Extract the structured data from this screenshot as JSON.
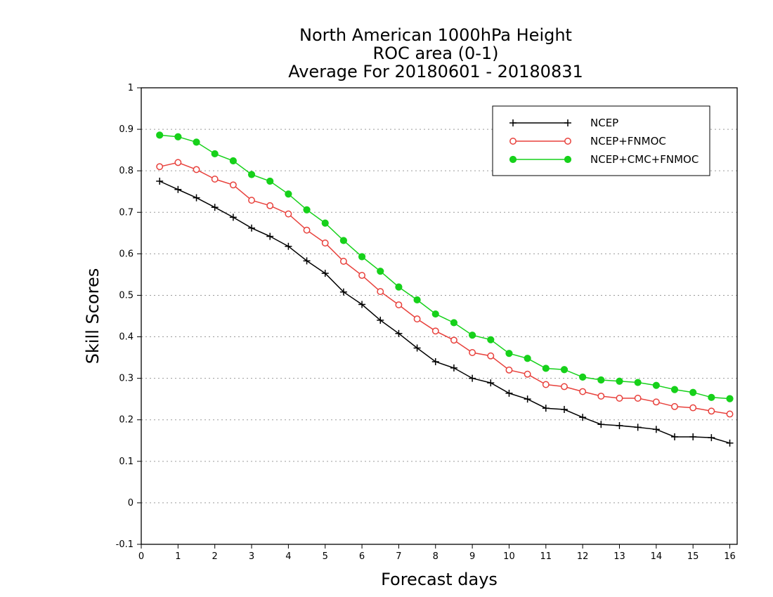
{
  "chart_data": {
    "type": "line",
    "title_lines": [
      "North American 1000hPa Height",
      "ROC area (0-1)",
      "Average For 20180601 - 20180831"
    ],
    "xlabel": "Forecast days",
    "ylabel": "Skill Scores",
    "xlim": [
      0,
      16.2
    ],
    "ylim": [
      -0.1,
      1
    ],
    "x_ticks": [
      0,
      1,
      2,
      3,
      4,
      5,
      6,
      7,
      8,
      9,
      10,
      11,
      12,
      13,
      14,
      15,
      16
    ],
    "y_ticks": [
      -0.1,
      0,
      0.1,
      0.2,
      0.3,
      0.4,
      0.5,
      0.6,
      0.7,
      0.8,
      0.9,
      1
    ],
    "y_tick_labels": [
      "-0.1",
      "0",
      "0.1",
      "0.2",
      "0.3",
      "0.4",
      "0.5",
      "0.6",
      "0.7",
      "0.8",
      "0.9",
      "1"
    ],
    "grid": "horizontal-dotted",
    "legend_position": "top-right",
    "x": [
      0.5,
      1.0,
      1.5,
      2.0,
      2.5,
      3.0,
      3.5,
      4.0,
      4.5,
      5.0,
      5.5,
      6.0,
      6.5,
      7.0,
      7.5,
      8.0,
      8.5,
      9.0,
      9.5,
      10.0,
      10.5,
      11.0,
      11.5,
      12.0,
      12.5,
      13.0,
      13.5,
      14.0,
      14.5,
      15.0,
      15.5,
      16.0
    ],
    "series": [
      {
        "name": "NCEP",
        "color": "#000000",
        "marker": "plus",
        "values": [
          0.775,
          0.755,
          0.735,
          0.712,
          0.688,
          0.662,
          0.642,
          0.618,
          0.583,
          0.553,
          0.508,
          0.478,
          0.44,
          0.408,
          0.373,
          0.34,
          0.325,
          0.3,
          0.289,
          0.264,
          0.25,
          0.228,
          0.225,
          0.206,
          0.189,
          0.186,
          0.182,
          0.177,
          0.159,
          0.159,
          0.157,
          0.144
        ]
      },
      {
        "name": "NCEP+FNMOC",
        "color": "#e8413c",
        "marker": "open-circle",
        "values": [
          0.81,
          0.82,
          0.803,
          0.78,
          0.766,
          0.729,
          0.716,
          0.696,
          0.657,
          0.626,
          0.582,
          0.548,
          0.509,
          0.477,
          0.443,
          0.414,
          0.392,
          0.362,
          0.354,
          0.32,
          0.31,
          0.285,
          0.28,
          0.268,
          0.257,
          0.252,
          0.252,
          0.243,
          0.232,
          0.229,
          0.221,
          0.214
        ]
      },
      {
        "name": "NCEP+CMC+FNMOC",
        "color": "#16d11a",
        "marker": "filled-circle",
        "values": [
          0.886,
          0.882,
          0.869,
          0.841,
          0.824,
          0.791,
          0.775,
          0.744,
          0.706,
          0.674,
          0.632,
          0.593,
          0.558,
          0.52,
          0.489,
          0.455,
          0.434,
          0.404,
          0.393,
          0.36,
          0.348,
          0.324,
          0.321,
          0.303,
          0.296,
          0.293,
          0.29,
          0.283,
          0.273,
          0.266,
          0.254,
          0.251
        ]
      }
    ]
  }
}
